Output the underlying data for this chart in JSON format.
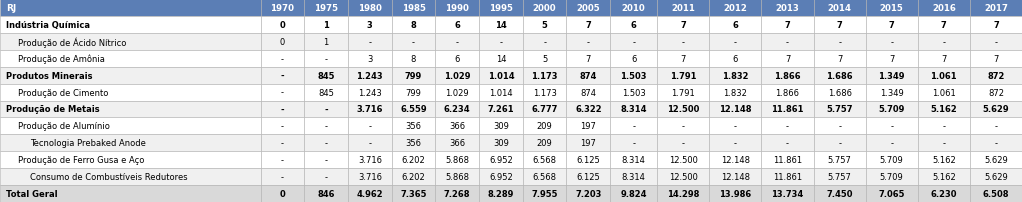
{
  "header_row": [
    "RJ",
    "1970",
    "1975",
    "1980",
    "1985",
    "1990",
    "1995",
    "2000",
    "2005",
    "2010",
    "2011",
    "2012",
    "2013",
    "2014",
    "2015",
    "2016",
    "2017"
  ],
  "rows": [
    {
      "label": "Indústria Química",
      "indent": 0,
      "bold": true,
      "values": [
        "0",
        "1",
        "3",
        "8",
        "6",
        "14",
        "5",
        "7",
        "6",
        "7",
        "6",
        "7",
        "7",
        "7",
        "7",
        "7"
      ]
    },
    {
      "label": "Produção de Ácido Nítrico",
      "indent": 1,
      "bold": false,
      "values": [
        "0",
        "1",
        "-",
        "-",
        "-",
        "-",
        "-",
        "-",
        "-",
        "-",
        "-",
        "-",
        "-",
        "-",
        "-",
        "-"
      ]
    },
    {
      "label": "Produção de Amônia",
      "indent": 1,
      "bold": false,
      "values": [
        "-",
        "-",
        "3",
        "8",
        "6",
        "14",
        "5",
        "7",
        "6",
        "7",
        "6",
        "7",
        "7",
        "7",
        "7",
        "7"
      ]
    },
    {
      "label": "Produtos Minerais",
      "indent": 0,
      "bold": true,
      "values": [
        "-",
        "845",
        "1.243",
        "799",
        "1.029",
        "1.014",
        "1.173",
        "874",
        "1.503",
        "1.791",
        "1.832",
        "1.866",
        "1.686",
        "1.349",
        "1.061",
        "872"
      ]
    },
    {
      "label": "Produção de Cimento",
      "indent": 1,
      "bold": false,
      "values": [
        "-",
        "845",
        "1.243",
        "799",
        "1.029",
        "1.014",
        "1.173",
        "874",
        "1.503",
        "1.791",
        "1.832",
        "1.866",
        "1.686",
        "1.349",
        "1.061",
        "872"
      ]
    },
    {
      "label": "Produção de Metais",
      "indent": 0,
      "bold": true,
      "values": [
        "-",
        "-",
        "3.716",
        "6.559",
        "6.234",
        "7.261",
        "6.777",
        "6.322",
        "8.314",
        "12.500",
        "12.148",
        "11.861",
        "5.757",
        "5.709",
        "5.162",
        "5.629"
      ]
    },
    {
      "label": "Produção de Alumínio",
      "indent": 1,
      "bold": false,
      "values": [
        "-",
        "-",
        "-",
        "356",
        "366",
        "309",
        "209",
        "197",
        "-",
        "-",
        "-",
        "-",
        "-",
        "-",
        "-",
        "-"
      ]
    },
    {
      "label": "Tecnologia Prebaked Anode",
      "indent": 2,
      "bold": false,
      "values": [
        "-",
        "-",
        "-",
        "356",
        "366",
        "309",
        "209",
        "197",
        "-",
        "-",
        "-",
        "-",
        "-",
        "-",
        "-",
        "-"
      ]
    },
    {
      "label": "Produção de Ferro Gusa e Aço",
      "indent": 1,
      "bold": false,
      "values": [
        "-",
        "-",
        "3.716",
        "6.202",
        "5.868",
        "6.952",
        "6.568",
        "6.125",
        "8.314",
        "12.500",
        "12.148",
        "11.861",
        "5.757",
        "5.709",
        "5.162",
        "5.629"
      ]
    },
    {
      "label": "Consumo de Combustíveis Redutores",
      "indent": 2,
      "bold": false,
      "values": [
        "-",
        "-",
        "3.716",
        "6.202",
        "5.868",
        "6.952",
        "6.568",
        "6.125",
        "8.314",
        "12.500",
        "12.148",
        "11.861",
        "5.757",
        "5.709",
        "5.162",
        "5.629"
      ]
    },
    {
      "label": "Total Geral",
      "indent": 0,
      "bold": true,
      "values": [
        "0",
        "846",
        "4.962",
        "7.365",
        "7.268",
        "8.289",
        "7.955",
        "7.203",
        "9.824",
        "14.298",
        "13.986",
        "13.734",
        "7.450",
        "7.065",
        "6.230",
        "6.508"
      ]
    }
  ],
  "header_bg": "#5b7eb5",
  "header_fg": "#ffffff",
  "row_bg_odd": "#ffffff",
  "row_bg_even": "#f0f0f0",
  "bold_row_bg": "#ffffff",
  "total_row_bg": "#d9d9d9",
  "border_color": "#b0b0b0",
  "text_color": "#000000",
  "col_widths_rel": [
    3.1,
    0.52,
    0.52,
    0.52,
    0.52,
    0.52,
    0.52,
    0.52,
    0.52,
    0.56,
    0.62,
    0.62,
    0.62,
    0.62,
    0.62,
    0.62,
    0.62
  ]
}
